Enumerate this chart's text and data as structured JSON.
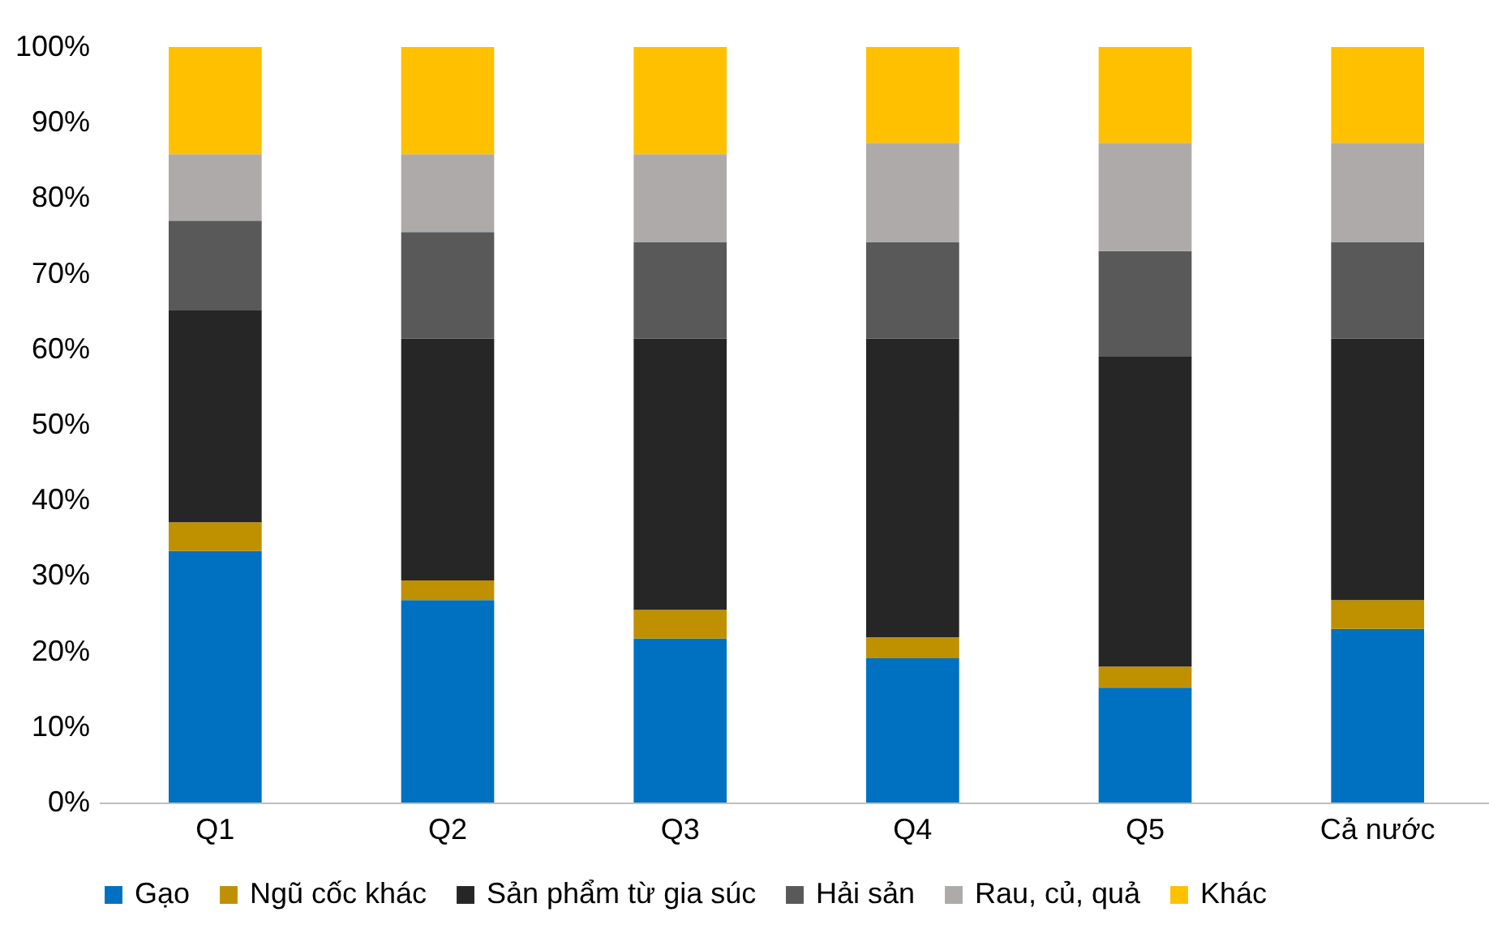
{
  "chart_data": {
    "type": "bar",
    "stacked": true,
    "categories": [
      "Q1",
      "Q2",
      "Q3",
      "Q4",
      "Q5",
      "Cả nước"
    ],
    "series": [
      {
        "name": "Gạo",
        "color": "#0070c0",
        "values": [
          33.3,
          26.8,
          21.7,
          19.1,
          15.2,
          23.0
        ]
      },
      {
        "name": "Ngũ cốc khác",
        "color": "#bf9000",
        "values": [
          3.8,
          2.6,
          3.8,
          2.8,
          2.8,
          3.8
        ]
      },
      {
        "name": "Sản phẩm từ gia súc",
        "color": "#262626",
        "values": [
          28.1,
          32.0,
          35.9,
          39.5,
          41.0,
          34.6
        ]
      },
      {
        "name": "Hải sản",
        "color": "#595959",
        "values": [
          11.8,
          14.1,
          12.8,
          12.8,
          14.0,
          12.8
        ]
      },
      {
        "name": "Rau, củ, quả",
        "color": "#aeaaaa",
        "values": [
          8.8,
          10.3,
          11.6,
          13.1,
          14.3,
          13.1
        ]
      },
      {
        "name": "Khác",
        "color": "#ffc000",
        "values": [
          14.2,
          14.2,
          14.2,
          12.7,
          12.7,
          12.7
        ]
      }
    ],
    "ylim": [
      0,
      100
    ],
    "yticks": [
      {
        "value": 0,
        "label": "0%"
      },
      {
        "value": 10,
        "label": "10%"
      },
      {
        "value": 20,
        "label": "20%"
      },
      {
        "value": 30,
        "label": "30%"
      },
      {
        "value": 40,
        "label": "40%"
      },
      {
        "value": 50,
        "label": "50%"
      },
      {
        "value": 60,
        "label": "60%"
      },
      {
        "value": 70,
        "label": "70%"
      },
      {
        "value": 80,
        "label": "80%"
      },
      {
        "value": 90,
        "label": "90%"
      },
      {
        "value": 100,
        "label": "100%"
      }
    ],
    "legend": "bottom"
  }
}
